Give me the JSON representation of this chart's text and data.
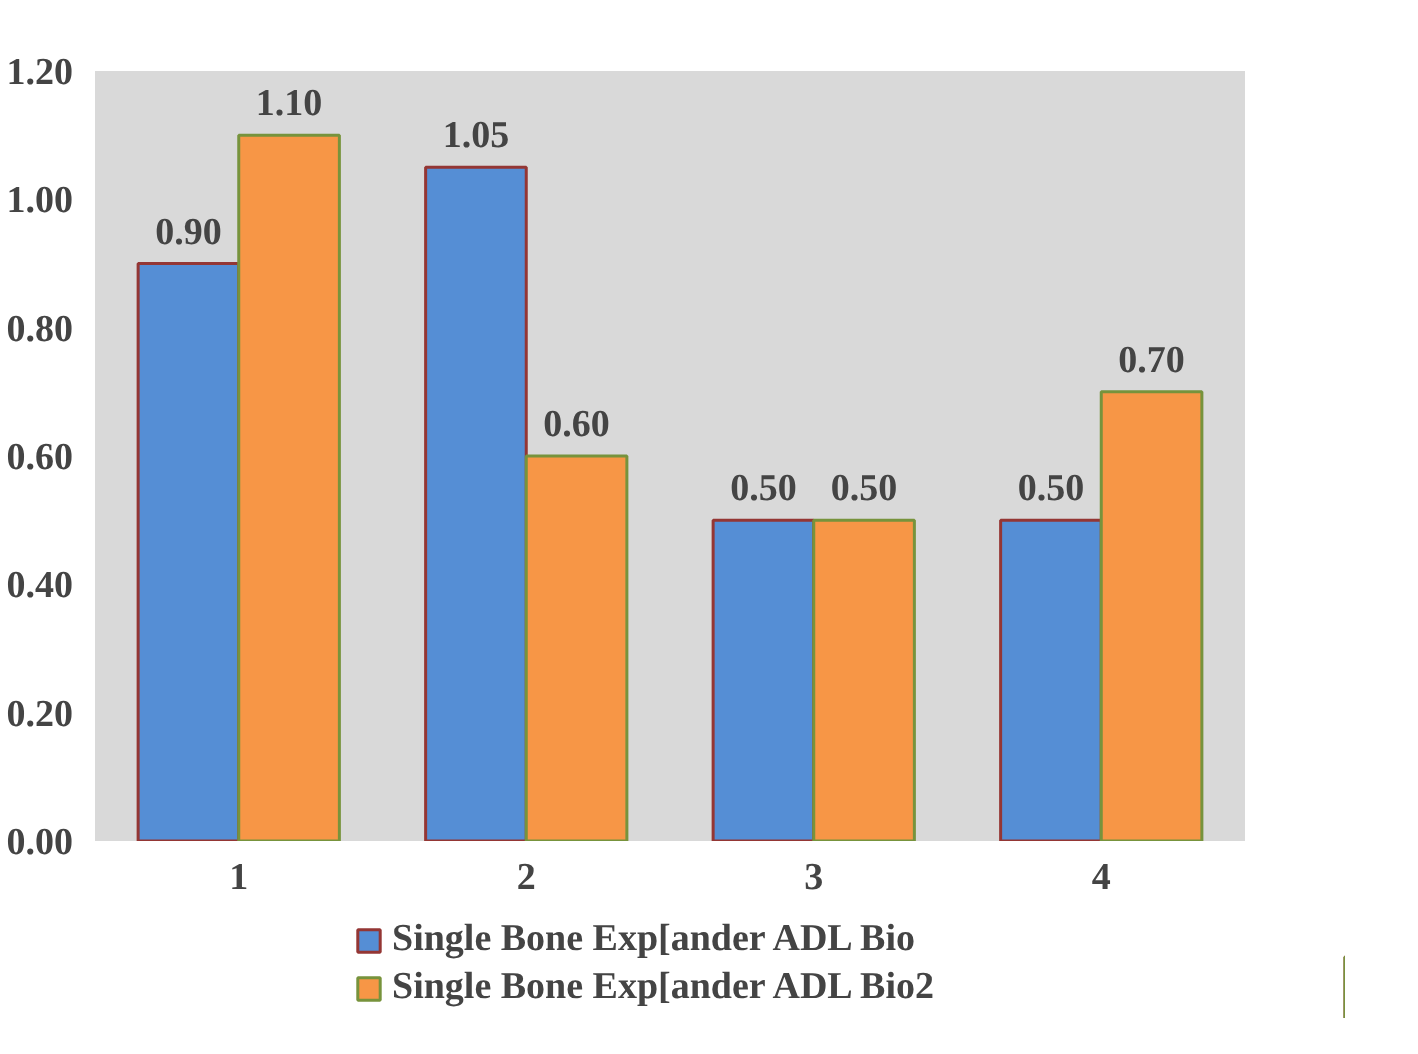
{
  "chart_data": {
    "type": "bar",
    "categories": [
      "1",
      "2",
      "3",
      "4"
    ],
    "series": [
      {
        "name": "Single Bone Exp[ander ADL Bio",
        "color": "#558ed5",
        "values": [
          0.9,
          1.05,
          0.5,
          0.5
        ],
        "value_labels": [
          "0.90",
          "1.05",
          "0.50",
          "0.50"
        ]
      },
      {
        "name": "Single Bone Exp[ander ADL Bio2",
        "color": "#f79646",
        "values": [
          1.1,
          0.6,
          0.5,
          0.7
        ],
        "value_labels": [
          "1.10",
          "0.60",
          "0.50",
          "0.70"
        ]
      }
    ],
    "ylim": [
      0,
      1.2
    ],
    "yticks": [
      {
        "value": 0,
        "label": "0.00"
      },
      {
        "value": 0.2,
        "label": "0.20"
      },
      {
        "value": 0.4,
        "label": "0.40"
      },
      {
        "value": 0.6,
        "label": "0.60"
      },
      {
        "value": 0.8,
        "label": "0.80"
      },
      {
        "value": 1.0,
        "label": "1.00"
      },
      {
        "value": 1.2,
        "label": "1.20"
      }
    ],
    "grid": false,
    "legend": "bottom"
  }
}
